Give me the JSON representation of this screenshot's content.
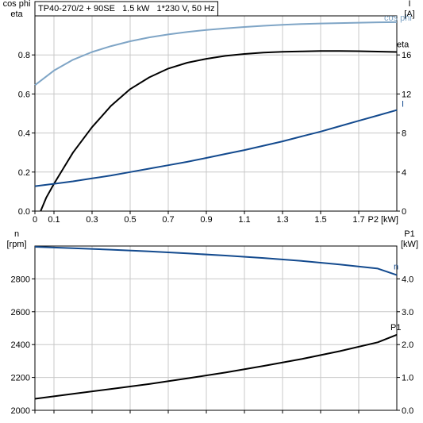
{
  "chart_data": [
    {
      "type": "line",
      "title": "TP40-270/2 + 90SE   1.5 kW   1*230 V, 50 Hz",
      "xlabel": "P2 [kW]",
      "xlim": [
        0,
        1.9
      ],
      "x_ticks": [
        0,
        0.1,
        0.3,
        0.5,
        0.7,
        0.9,
        1.1,
        1.3,
        1.5,
        1.7
      ],
      "x_tick_labels": [
        "0",
        "0.1",
        "0.3",
        "0.5",
        "0.7",
        "0.9",
        "1.1",
        "1.3",
        "1.5",
        "1.7"
      ],
      "left_axis": {
        "label_line1": "cos phi",
        "label_line2": "eta",
        "lim": [
          0,
          1.0
        ],
        "ticks": [
          0.0,
          0.2,
          0.4,
          0.6,
          0.8
        ],
        "tick_labels": [
          "0.0",
          "0.2",
          "0.4",
          "0.6",
          "0.8"
        ]
      },
      "right_axis": {
        "label_line1": "I",
        "label_line2": "[A]",
        "lim": [
          0,
          20
        ],
        "ticks": [
          0,
          4,
          8,
          12,
          16
        ],
        "tick_labels": [
          "0",
          "4",
          "8",
          "12",
          "16"
        ]
      },
      "series": [
        {
          "name": "cos phi",
          "axis": "left",
          "color": "#7fa5c6",
          "x": [
            0,
            0.1,
            0.2,
            0.3,
            0.4,
            0.5,
            0.6,
            0.7,
            0.8,
            0.9,
            1.0,
            1.1,
            1.2,
            1.3,
            1.4,
            1.5,
            1.6,
            1.7,
            1.8,
            1.9
          ],
          "y": [
            0.645,
            0.72,
            0.775,
            0.815,
            0.845,
            0.87,
            0.89,
            0.905,
            0.918,
            0.928,
            0.936,
            0.943,
            0.949,
            0.954,
            0.958,
            0.961,
            0.963,
            0.965,
            0.967,
            0.968
          ]
        },
        {
          "name": "eta",
          "axis": "left",
          "color": "#000000",
          "x": [
            0.03,
            0.06,
            0.1,
            0.15,
            0.2,
            0.3,
            0.4,
            0.5,
            0.6,
            0.7,
            0.8,
            0.9,
            1.0,
            1.1,
            1.2,
            1.3,
            1.4,
            1.5,
            1.6,
            1.7,
            1.8,
            1.9
          ],
          "y": [
            0.0,
            0.07,
            0.14,
            0.22,
            0.3,
            0.43,
            0.54,
            0.625,
            0.685,
            0.73,
            0.76,
            0.78,
            0.795,
            0.805,
            0.812,
            0.816,
            0.818,
            0.82,
            0.82,
            0.819,
            0.817,
            0.815
          ]
        },
        {
          "name": "I",
          "axis": "right",
          "color": "#134a8e",
          "x": [
            0,
            0.1,
            0.2,
            0.3,
            0.4,
            0.5,
            0.6,
            0.7,
            0.8,
            0.9,
            1.0,
            1.1,
            1.2,
            1.3,
            1.4,
            1.5,
            1.6,
            1.7,
            1.8,
            1.9
          ],
          "y": [
            2.55,
            2.8,
            3.05,
            3.35,
            3.65,
            4.0,
            4.35,
            4.7,
            5.05,
            5.45,
            5.85,
            6.25,
            6.7,
            7.15,
            7.65,
            8.15,
            8.7,
            9.25,
            9.8,
            10.35
          ]
        }
      ]
    },
    {
      "type": "line",
      "xlim": [
        0,
        1.9
      ],
      "left_axis": {
        "label_line1": "n",
        "label_line2": "[rpm]",
        "lim": [
          2000,
          3000
        ],
        "ticks": [
          2000,
          2200,
          2400,
          2600,
          2800
        ],
        "tick_labels": [
          "2000",
          "2200",
          "2400",
          "2600",
          "2800"
        ]
      },
      "right_axis": {
        "label_line1": "P1",
        "label_line2": "[kW]",
        "lim": [
          0,
          5
        ],
        "ticks": [
          0,
          1,
          2,
          3,
          4
        ],
        "tick_labels": [
          "0.0",
          "1.0",
          "2.0",
          "3.0",
          "4.0"
        ]
      },
      "series": [
        {
          "name": "n",
          "axis": "left",
          "color": "#134a8e",
          "x": [
            0,
            0.2,
            0.4,
            0.6,
            0.8,
            1.0,
            1.2,
            1.4,
            1.6,
            1.8,
            1.9
          ],
          "y": [
            2995,
            2987,
            2978,
            2967,
            2955,
            2942,
            2927,
            2909,
            2888,
            2863,
            2823
          ]
        },
        {
          "name": "P1",
          "axis": "right",
          "color": "#000000",
          "x": [
            0,
            0.2,
            0.4,
            0.6,
            0.8,
            1.0,
            1.2,
            1.4,
            1.6,
            1.8,
            1.9
          ],
          "y": [
            0.35,
            0.5,
            0.65,
            0.8,
            0.97,
            1.15,
            1.35,
            1.56,
            1.8,
            2.07,
            2.3
          ]
        }
      ]
    }
  ]
}
